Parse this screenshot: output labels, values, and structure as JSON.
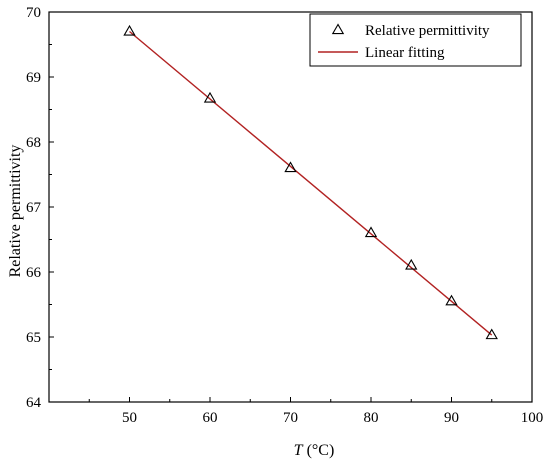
{
  "chart_data": {
    "type": "scatter",
    "xlabel_var": "T",
    "xlabel_unit": " (°C)",
    "ylabel": "Relative permittivity",
    "xlim": [
      40,
      100
    ],
    "ylim": [
      64,
      70
    ],
    "xticks": [
      50,
      60,
      70,
      80,
      90,
      100
    ],
    "yticks": [
      64,
      65,
      66,
      67,
      68,
      69,
      70
    ],
    "grid": false,
    "legend_position": "top-right",
    "series": [
      {
        "name": "Relative permittivity",
        "kind": "scatter",
        "marker": "open-triangle",
        "color": "#000000",
        "x": [
          50,
          60,
          70,
          80,
          85,
          90,
          95
        ],
        "y": [
          69.7,
          68.67,
          67.6,
          66.6,
          66.1,
          65.55,
          65.03
        ]
      },
      {
        "name": "Linear fitting",
        "kind": "line",
        "color": "#b22222",
        "x": [
          50,
          95
        ],
        "y": [
          69.7,
          65.03
        ]
      }
    ]
  }
}
